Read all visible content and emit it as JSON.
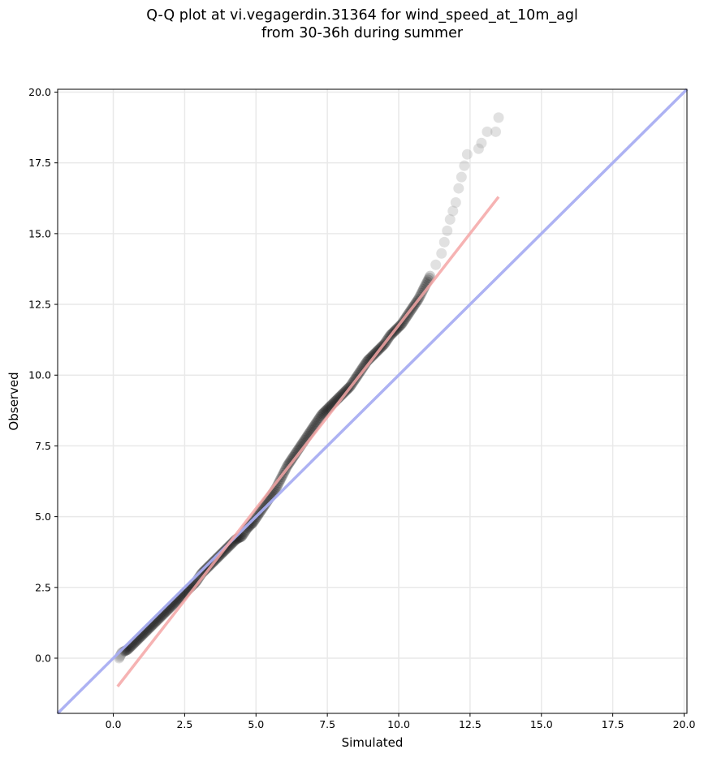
{
  "chart_data": {
    "type": "scatter",
    "title": "Q-Q plot at vi.vegagerdin.31364 for wind_speed_at_10m_agl\nfrom 30-36h during summer",
    "xlabel": "Simulated",
    "ylabel": "Observed",
    "xlim": [
      -1.95,
      20.1
    ],
    "ylim": [
      -1.95,
      20.1
    ],
    "xticks": [
      0.0,
      2.5,
      5.0,
      7.5,
      10.0,
      12.5,
      15.0,
      17.5,
      20.0
    ],
    "yticks": [
      0.0,
      2.5,
      5.0,
      7.5,
      10.0,
      12.5,
      15.0,
      17.5,
      20.0
    ],
    "xtick_labels": [
      "0.0",
      "2.5",
      "5.0",
      "7.5",
      "10.0",
      "12.5",
      "15.0",
      "17.5",
      "20.0"
    ],
    "ytick_labels": [
      "0.0",
      "2.5",
      "5.0",
      "7.5",
      "10.0",
      "12.5",
      "15.0",
      "17.5",
      "20.0"
    ],
    "grid": true,
    "quantile_points": [
      [
        0.2,
        0.0
      ],
      [
        0.3,
        0.2
      ],
      [
        0.5,
        0.3
      ],
      [
        0.7,
        0.5
      ],
      [
        0.9,
        0.7
      ],
      [
        1.1,
        0.9
      ],
      [
        1.3,
        1.1
      ],
      [
        1.5,
        1.3
      ],
      [
        1.7,
        1.5
      ],
      [
        1.9,
        1.7
      ],
      [
        2.1,
        1.9
      ],
      [
        2.3,
        2.1
      ],
      [
        2.5,
        2.3
      ],
      [
        2.7,
        2.5
      ],
      [
        2.9,
        2.7
      ],
      [
        3.1,
        3.0
      ],
      [
        3.3,
        3.2
      ],
      [
        3.5,
        3.4
      ],
      [
        3.7,
        3.6
      ],
      [
        3.9,
        3.8
      ],
      [
        4.1,
        4.0
      ],
      [
        4.3,
        4.2
      ],
      [
        4.5,
        4.3
      ],
      [
        4.7,
        4.6
      ],
      [
        4.9,
        4.8
      ],
      [
        5.1,
        5.1
      ],
      [
        5.3,
        5.4
      ],
      [
        5.5,
        5.7
      ],
      [
        5.7,
        6.0
      ],
      [
        5.9,
        6.4
      ],
      [
        6.1,
        6.8
      ],
      [
        6.3,
        7.1
      ],
      [
        6.5,
        7.4
      ],
      [
        6.7,
        7.7
      ],
      [
        6.9,
        8.0
      ],
      [
        7.1,
        8.3
      ],
      [
        7.3,
        8.6
      ],
      [
        7.5,
        8.8
      ],
      [
        7.7,
        9.0
      ],
      [
        7.9,
        9.2
      ],
      [
        8.1,
        9.4
      ],
      [
        8.3,
        9.6
      ],
      [
        8.5,
        9.9
      ],
      [
        8.7,
        10.2
      ],
      [
        8.9,
        10.5
      ],
      [
        9.1,
        10.7
      ],
      [
        9.3,
        10.9
      ],
      [
        9.5,
        11.1
      ],
      [
        9.7,
        11.4
      ],
      [
        9.9,
        11.6
      ],
      [
        10.1,
        11.8
      ],
      [
        10.3,
        12.1
      ],
      [
        10.5,
        12.4
      ],
      [
        10.7,
        12.7
      ],
      [
        10.9,
        13.1
      ],
      [
        11.1,
        13.5
      ],
      [
        11.3,
        13.9
      ],
      [
        11.5,
        14.3
      ],
      [
        11.6,
        14.7
      ],
      [
        11.7,
        15.1
      ],
      [
        11.8,
        15.5
      ],
      [
        11.9,
        15.8
      ],
      [
        12.0,
        16.1
      ],
      [
        12.1,
        16.6
      ],
      [
        12.2,
        17.0
      ],
      [
        12.3,
        17.4
      ],
      [
        12.4,
        17.8
      ],
      [
        12.8,
        18.0
      ],
      [
        12.9,
        18.2
      ],
      [
        13.1,
        18.6
      ],
      [
        13.4,
        18.6
      ],
      [
        13.5,
        19.1
      ]
    ],
    "fit_line": {
      "x": [
        0.15,
        13.5
      ],
      "y": [
        -1.0,
        16.3
      ],
      "color": "#f4a6a6"
    },
    "identity_line": {
      "color": "#a9aef2"
    },
    "colors": {
      "marker": "#000000",
      "marker_light": "#9a9a9a",
      "grid": "#e9e9e9"
    }
  }
}
